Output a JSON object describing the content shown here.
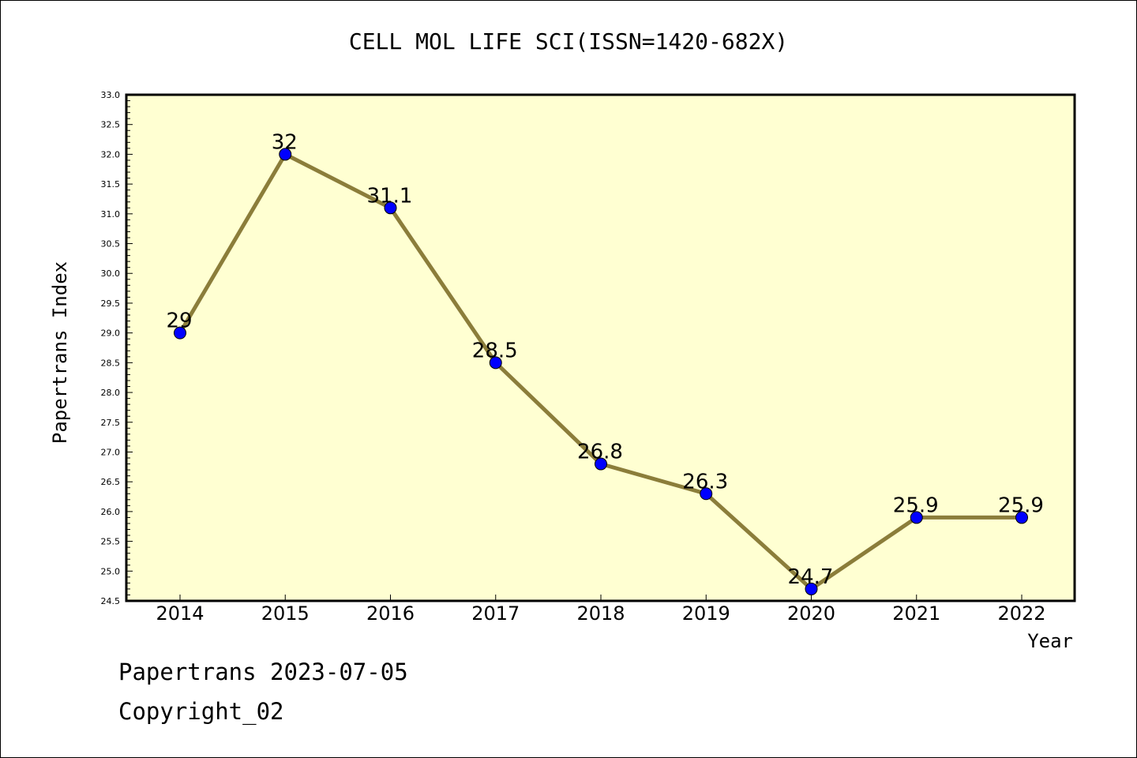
{
  "chart_data": {
    "type": "line",
    "title": "CELL MOL LIFE SCI(ISSN=1420-682X)",
    "xlabel": "Year",
    "ylabel": "Papertrans Index",
    "categories": [
      "2014",
      "2015",
      "2016",
      "2017",
      "2018",
      "2019",
      "2020",
      "2021",
      "2022"
    ],
    "series": [
      {
        "values": [
          29,
          32,
          31.1,
          28.5,
          26.8,
          26.3,
          24.7,
          25.9,
          25.9
        ],
        "labels": [
          "29",
          "32",
          "31.1",
          "28.5",
          "26.8",
          "26.3",
          "24.7",
          "25.9",
          "25.9"
        ]
      }
    ],
    "ylim": [
      24.5,
      33.0
    ],
    "yticks": [
      "24.5",
      "25.0",
      "25.5",
      "26.0",
      "26.5",
      "27.0",
      "27.5",
      "28.0",
      "28.5",
      "29.0",
      "29.5",
      "30.0",
      "30.5",
      "31.0",
      "31.5",
      "32.0",
      "32.5",
      "33.0"
    ],
    "grid": false,
    "colors": {
      "plot_background": "#ffffd2",
      "line": "#8b7d3a",
      "marker": "#0000ff",
      "axis": "#000000"
    }
  },
  "footer": {
    "date": "Papertrans 2023-07-05",
    "copyright": "Copyright_02"
  }
}
